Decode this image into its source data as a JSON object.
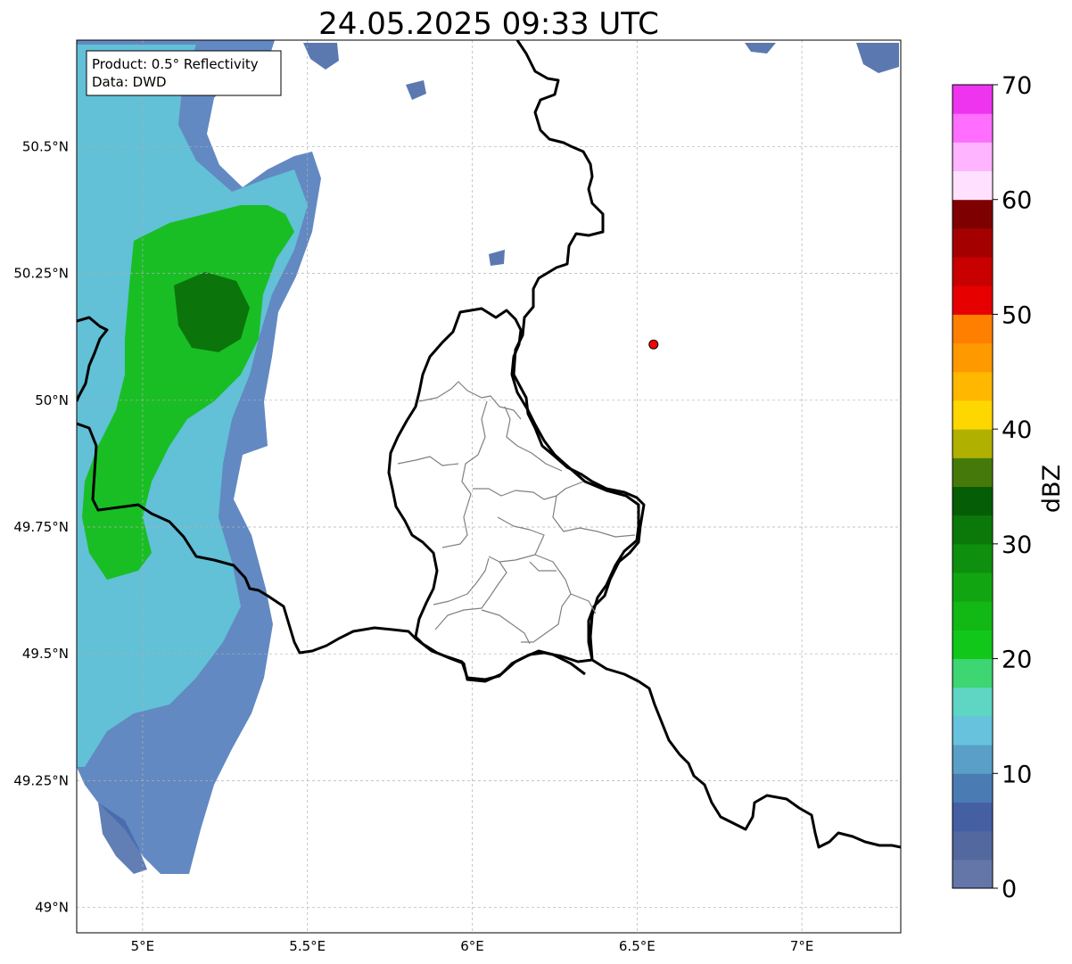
{
  "map": {
    "title": "24.05.2025 09:33 UTC",
    "info_box": {
      "product": "Product: 0.5° Reflectivity",
      "data": "Data: DWD"
    },
    "extent": {
      "lon_min": 4.8,
      "lon_max": 7.3,
      "lat_min": 48.95,
      "lat_max": 50.71
    },
    "x_ticks": [
      {
        "value": 5.0,
        "label": "5°E"
      },
      {
        "value": 5.5,
        "label": "5.5°E"
      },
      {
        "value": 6.0,
        "label": "6°E"
      },
      {
        "value": 6.5,
        "label": "6.5°E"
      },
      {
        "value": 7.0,
        "label": "7°E"
      }
    ],
    "y_ticks": [
      {
        "value": 50.5,
        "label": "50.5°N"
      },
      {
        "value": 50.25,
        "label": "50.25°N"
      },
      {
        "value": 50.0,
        "label": "50°N"
      },
      {
        "value": 49.75,
        "label": "49.75°N"
      },
      {
        "value": 49.5,
        "label": "49.5°N"
      },
      {
        "value": 49.25,
        "label": "49.25°N"
      },
      {
        "value": 49.0,
        "label": "49°N"
      }
    ],
    "grid": true,
    "marker": {
      "lon": 6.55,
      "lat": 50.11,
      "color": "#ff0000"
    },
    "colors": {
      "border": "#000000",
      "districts": "#808080",
      "grid": "#b0b0b0"
    }
  },
  "colorbar": {
    "unit_label": "dBZ",
    "min": 0,
    "max": 70,
    "tick_values": [
      0,
      10,
      20,
      30,
      40,
      50,
      60,
      70
    ],
    "tick_labels": [
      "0",
      "10",
      "20",
      "30",
      "40",
      "50",
      "60",
      "70"
    ],
    "bins": [
      "#6476a8",
      "#52689f",
      "#4460a2",
      "#4a7bb3",
      "#5a9fc7",
      "#66c2dd",
      "#5fd6c4",
      "#3dd672",
      "#11c81a",
      "#12b814",
      "#11a611",
      "#0e8f0e",
      "#0a790a",
      "#055e05",
      "#457a0a",
      "#b0b000",
      "#ffd700",
      "#ffb700",
      "#ff9900",
      "#ff7f00",
      "#e60000",
      "#c80000",
      "#a50000",
      "#7f0000",
      "#ffe1ff",
      "#ffb4ff",
      "#ff6eff",
      "#ee34ee"
    ]
  }
}
